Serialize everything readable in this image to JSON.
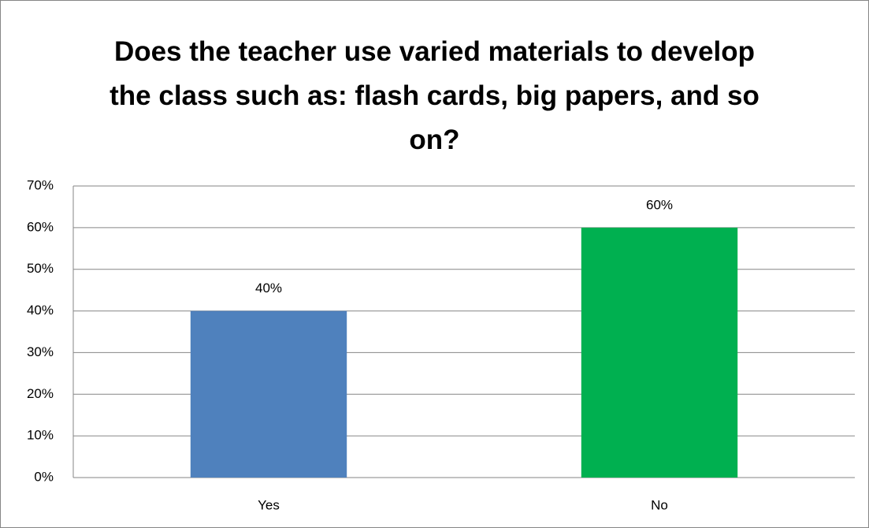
{
  "chart_data": {
    "type": "bar",
    "title": "Does the teacher use varied materials to develop the class such as: flash cards, big papers, and so on?",
    "categories": [
      "Yes",
      "No"
    ],
    "values": [
      40,
      60
    ],
    "value_labels": [
      "40%",
      "60%"
    ],
    "colors": [
      "#4f81bd",
      "#00b050"
    ],
    "ylim": [
      0,
      70
    ],
    "yticks": [
      {
        "value": 0,
        "label": "0%"
      },
      {
        "value": 10,
        "label": "10%"
      },
      {
        "value": 20,
        "label": "20%"
      },
      {
        "value": 30,
        "label": "30%"
      },
      {
        "value": 40,
        "label": "40%"
      },
      {
        "value": 50,
        "label": "50%"
      },
      {
        "value": 60,
        "label": "60%"
      },
      {
        "value": 70,
        "label": "70%"
      }
    ],
    "grid": true
  }
}
